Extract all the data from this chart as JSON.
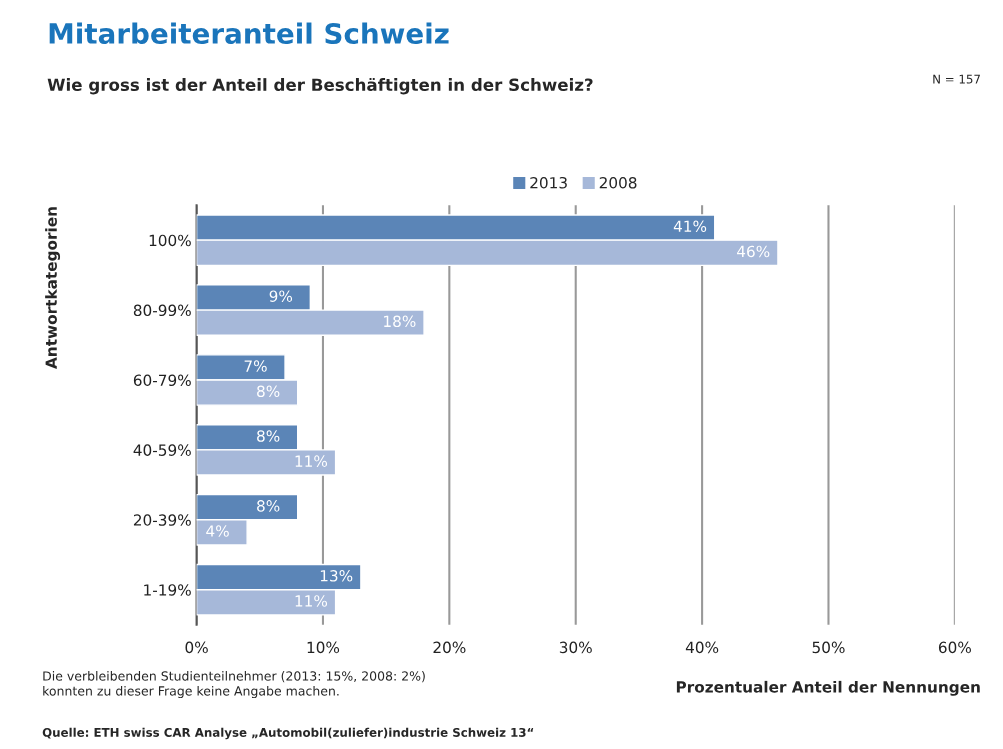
{
  "chart_data": {
    "type": "bar",
    "orientation": "horizontal",
    "title": "Mitarbeiteranteil Schweiz",
    "subtitle": "Wie gross ist der Anteil der Beschäftigten in der Schweiz?",
    "ylabel": "Antwortkategorien",
    "xlabel": "Prozentualer Anteil der Nennungen",
    "categories": [
      "100%",
      "80-99%",
      "60-79%",
      "40-59%",
      "20-39%",
      "1-19%"
    ],
    "series": [
      {
        "name": "2013",
        "color": "#5b85b7",
        "values": [
          41,
          9,
          7,
          8,
          8,
          13
        ],
        "value_labels": [
          "41%",
          "9%",
          "7%",
          "8%",
          "8%",
          "13%"
        ]
      },
      {
        "name": "2008",
        "color": "#a6b8d9",
        "values": [
          46,
          18,
          8,
          11,
          4,
          11
        ],
        "value_labels": [
          "46%",
          "18%",
          "8%",
          "11%",
          "4%",
          "11%"
        ]
      }
    ],
    "xlim": [
      0,
      60
    ],
    "xticks": [
      {
        "value": 0,
        "label": "0%"
      },
      {
        "value": 10,
        "label": "10%"
      },
      {
        "value": 20,
        "label": "20%"
      },
      {
        "value": 30,
        "label": "30%"
      },
      {
        "value": 40,
        "label": "40%"
      },
      {
        "value": 50,
        "label": "50%"
      },
      {
        "value": 60,
        "label": "60%"
      }
    ],
    "grid": "x",
    "legend": "top",
    "annotations": [
      "N = 157",
      "Die verbleibenden Studienteilnehmer (2013: 15%, 2008: 2%)\nkonnten zu dieser Frage keine Angabe machen.",
      "Quelle: ETH swiss CAR Analyse „Automobil(zuliefer)industrie Schweiz 13“"
    ]
  }
}
